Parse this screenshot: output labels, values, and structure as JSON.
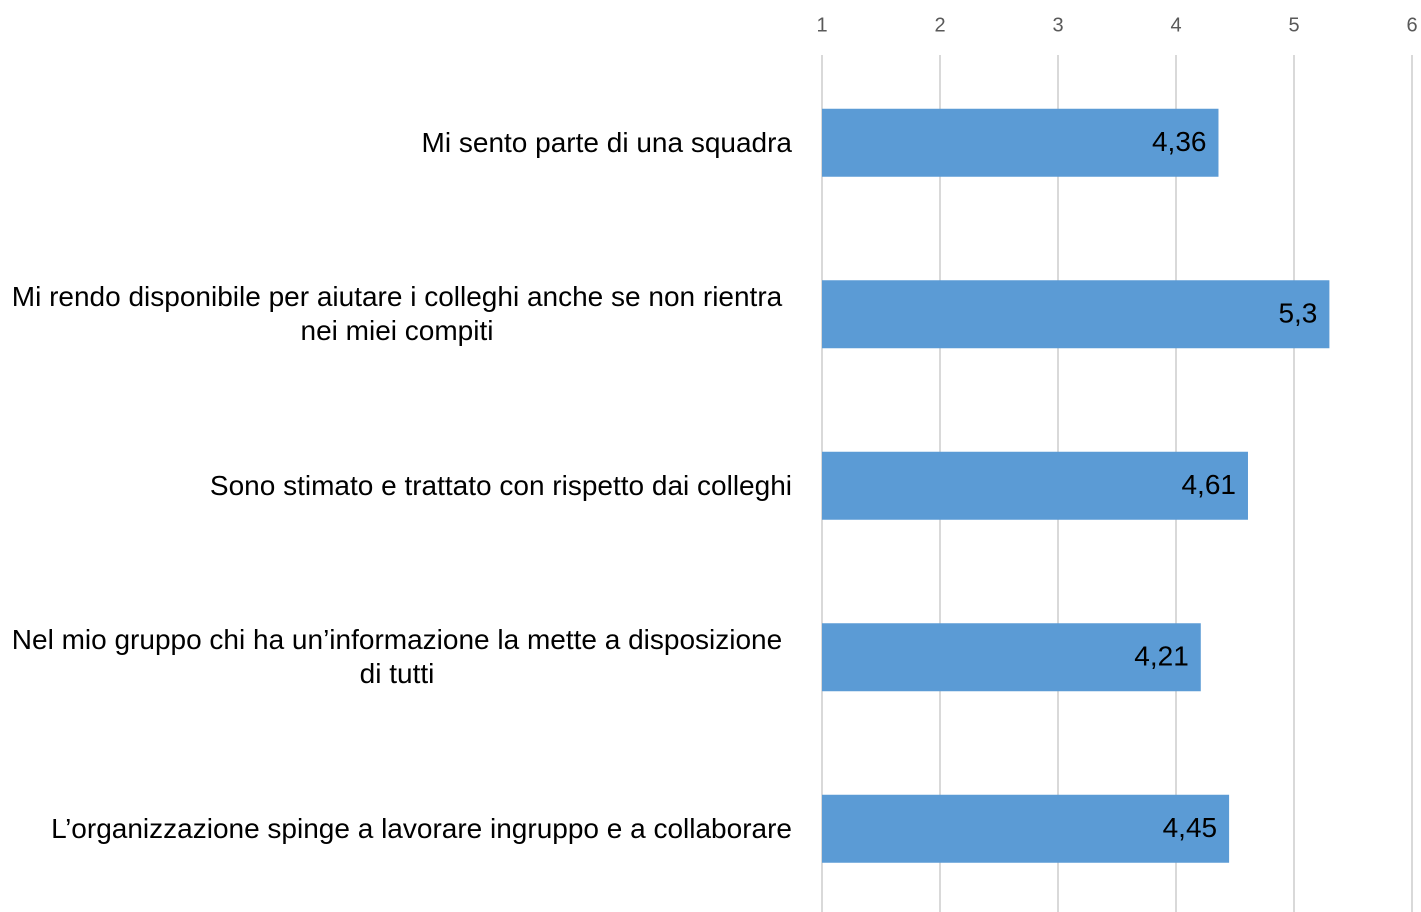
{
  "chart_data": {
    "type": "barh",
    "categories": [
      "Mi sento parte di una squadra",
      "Mi rendo disponibile per aiutare i colleghi anche se non rientra nei miei compiti",
      "Sono stimato e trattato con rispetto dai colleghi",
      "Nel mio gruppo chi ha un’informazione la mette a disposizione di tutti",
      "L’organizzazione spinge a lavorare ingruppo e a collaborare"
    ],
    "values": [
      4.36,
      5.3,
      4.61,
      4.21,
      4.45
    ],
    "value_labels": [
      "4,36",
      "5,3",
      "4,61",
      "4,21",
      "4,45"
    ],
    "color": "#5b9bd5",
    "xlim": [
      1,
      6
    ],
    "xticks": [
      1,
      2,
      3,
      4,
      5,
      6
    ],
    "grid": true
  }
}
